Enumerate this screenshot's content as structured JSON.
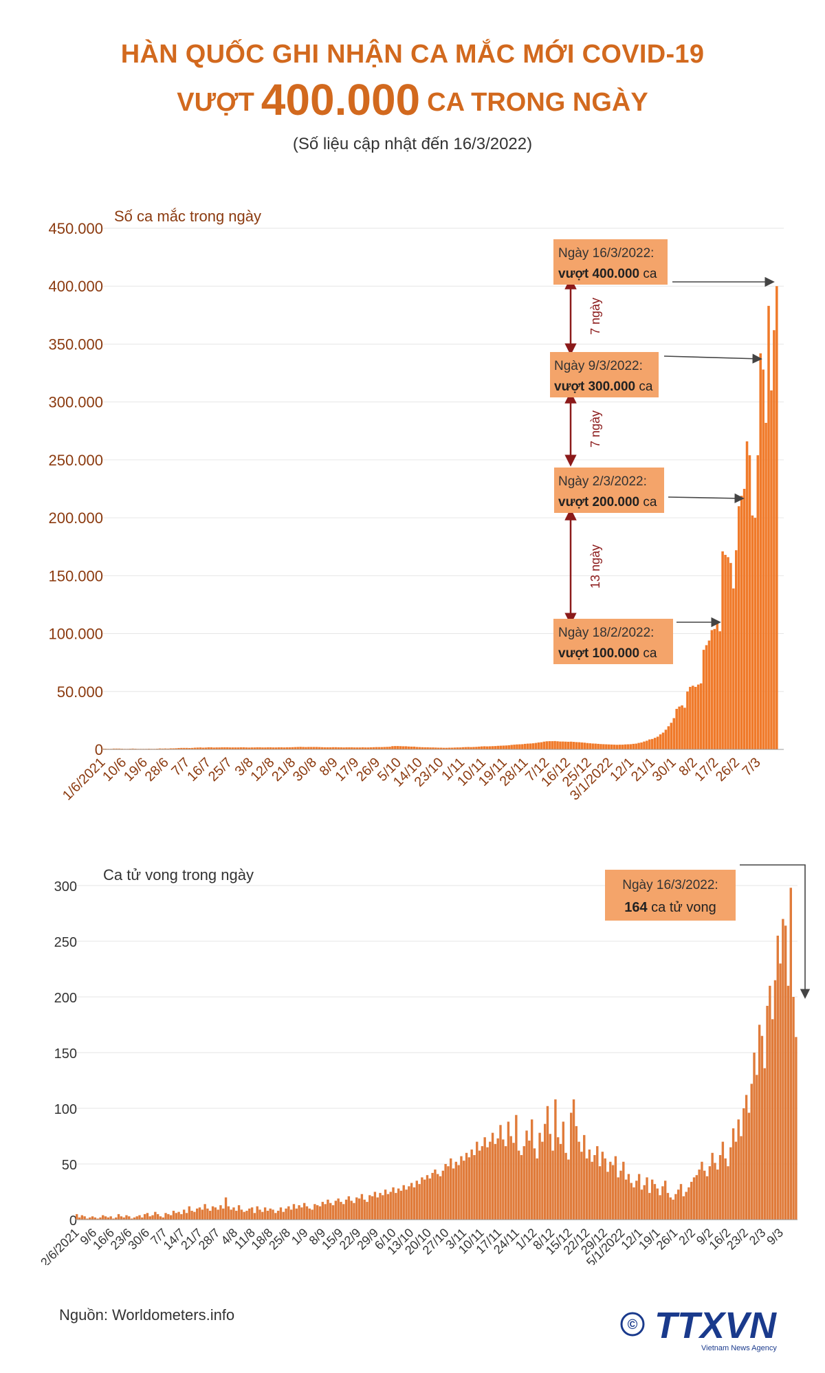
{
  "title": {
    "line1": "HÀN QUỐC GHI NHẬN CA MẮC MỚI COVID-19",
    "line2_prefix": "VƯỢT",
    "line2_number": "400.000",
    "line2_suffix": "CA TRONG NGÀY",
    "subtitle": "(Số liệu cập nhật đến 16/3/2022)"
  },
  "colors": {
    "accent": "#d2691e",
    "bar": "#f07a2a",
    "death_bar": "#e07b3a",
    "box": "#f4a46a",
    "arrow_red": "#8b1a1a",
    "grid": "#e6e6e6"
  },
  "chart_data": [
    {
      "type": "bar",
      "ylabel": "Số ca mắc trong ngày",
      "ylim": [
        0,
        450000
      ],
      "yticks": [
        "0",
        "50.000",
        "100.000",
        "150.000",
        "200.000",
        "250.000",
        "300.000",
        "350.000",
        "400.000",
        "450.000"
      ],
      "xticks": [
        "1/6/2021",
        "10/6",
        "19/6",
        "28/6",
        "7/7",
        "16/7",
        "25/7",
        "3/8",
        "12/8",
        "21/8",
        "30/8",
        "8/9",
        "17/9",
        "26/9",
        "5/10",
        "14/10",
        "23/10",
        "1/11",
        "10/11",
        "19/11",
        "28/11",
        "7/12",
        "16/12",
        "25/12",
        "3/1/2022",
        "12/1",
        "21/1",
        "30/1",
        "8/2",
        "17/2",
        "26/2",
        "7/3"
      ],
      "period": "1/6/2021 - 16/3/2022",
      "values": [
        700,
        600,
        500,
        500,
        700,
        700,
        700,
        600,
        500,
        500,
        600,
        700,
        600,
        500,
        500,
        500,
        500,
        600,
        500,
        500,
        600,
        800,
        700,
        800,
        700,
        900,
        900,
        1000,
        1200,
        1300,
        1300,
        1300,
        1200,
        1300,
        1500,
        1600,
        1700,
        1500,
        1600,
        1800,
        1800,
        1600,
        1700,
        1700,
        1800,
        1800,
        1800,
        1700,
        1700,
        1700,
        1700,
        1800,
        1800,
        1700,
        1600,
        1700,
        1700,
        1800,
        1800,
        1700,
        1700,
        1800,
        1800,
        1700,
        1700,
        1800,
        1800,
        1700,
        1800,
        1800,
        1900,
        2000,
        2100,
        2200,
        2100,
        2000,
        2100,
        2100,
        2100,
        2100,
        2000,
        1900,
        1800,
        1800,
        1800,
        1900,
        1900,
        1800,
        1800,
        1700,
        1800,
        1800,
        1800,
        1700,
        1700,
        1700,
        1800,
        1700,
        1700,
        1800,
        1900,
        2000,
        2000,
        2000,
        2100,
        2200,
        2300,
        2800,
        2900,
        2900,
        2800,
        2700,
        2700,
        2500,
        2400,
        2400,
        2100,
        2000,
        1900,
        1800,
        1800,
        1700,
        1700,
        1600,
        1500,
        1500,
        1400,
        1400,
        1500,
        1500,
        1600,
        1700,
        1700,
        1900,
        2000,
        2100,
        2000,
        2100,
        2200,
        2400,
        2600,
        2700,
        2600,
        2700,
        2800,
        2900,
        3100,
        3200,
        3300,
        3400,
        3600,
        3900,
        4100,
        4300,
        4400,
        4500,
        4800,
        5000,
        5100,
        5300,
        5600,
        6000,
        6200,
        6700,
        7000,
        7100,
        7100,
        7200,
        7000,
        6800,
        6800,
        6700,
        6600,
        6700,
        6500,
        6300,
        6200,
        6000,
        5800,
        5500,
        5300,
        5100,
        5000,
        4800,
        4600,
        4500,
        4400,
        4300,
        4200,
        4100,
        4000,
        4100,
        4100,
        4300,
        4400,
        4500,
        4800,
        5000,
        5600,
        6000,
        6800,
        7500,
        8600,
        9000,
        10000,
        11000,
        13000,
        14500,
        17000,
        20000,
        23000,
        27000,
        35000,
        37000,
        38000,
        36000,
        50000,
        54000,
        55000,
        54000,
        56000,
        57000,
        86000,
        90000,
        94000,
        103000,
        104000,
        109000,
        102000,
        171000,
        168000,
        166000,
        161000,
        139000,
        172000,
        210000,
        219000,
        225000,
        266000,
        254000,
        202000,
        200000,
        254000,
        342000,
        328000,
        282000,
        383000,
        310000,
        362000,
        400000
      ]
    },
    {
      "type": "bar",
      "ylabel": "Ca tử vong trong ngày",
      "ylim": [
        0,
        300
      ],
      "yticks": [
        "0",
        "50",
        "100",
        "150",
        "200",
        "250",
        "300"
      ],
      "xticks": [
        "2/6/2021",
        "9/6",
        "16/6",
        "23/6",
        "30/6",
        "7/7",
        "14/7",
        "21/7",
        "28/7",
        "4/8",
        "11/8",
        "18/8",
        "25/8",
        "1/9",
        "8/9",
        "15/9",
        "22/9",
        "29/9",
        "6/10",
        "13/10",
        "20/10",
        "27/10",
        "3/11",
        "10/11",
        "17/11",
        "24/11",
        "1/12",
        "8/12",
        "15/12",
        "22/12",
        "29/12",
        "5/1/2022",
        "12/1",
        "19/1",
        "26/1",
        "2/2",
        "9/2",
        "16/2",
        "23/2",
        "2/3",
        "9/3"
      ],
      "period": "2/6/2021 - 16/3/2022",
      "values": [
        5,
        2,
        4,
        3,
        1,
        2,
        3,
        2,
        1,
        2,
        4,
        3,
        2,
        3,
        1,
        2,
        5,
        3,
        2,
        4,
        3,
        1,
        2,
        3,
        4,
        2,
        5,
        6,
        3,
        4,
        7,
        5,
        3,
        2,
        6,
        5,
        4,
        8,
        6,
        7,
        5,
        9,
        6,
        12,
        8,
        7,
        10,
        11,
        9,
        14,
        10,
        8,
        12,
        11,
        9,
        13,
        10,
        20,
        12,
        9,
        11,
        8,
        13,
        9,
        7,
        8,
        10,
        11,
        6,
        12,
        9,
        7,
        11,
        8,
        10,
        9,
        6,
        8,
        11,
        7,
        10,
        12,
        9,
        14,
        10,
        13,
        11,
        15,
        12,
        10,
        9,
        14,
        13,
        12,
        16,
        14,
        18,
        15,
        13,
        17,
        19,
        16,
        14,
        18,
        21,
        17,
        15,
        20,
        19,
        23,
        18,
        16,
        22,
        21,
        25,
        20,
        24,
        22,
        27,
        23,
        25,
        29,
        24,
        28,
        26,
        31,
        27,
        30,
        33,
        29,
        35,
        32,
        38,
        36,
        40,
        37,
        42,
        45,
        41,
        39,
        44,
        50,
        48,
        55,
        46,
        52,
        49,
        57,
        53,
        60,
        56,
        63,
        58,
        70,
        62,
        66,
        74,
        65,
        70,
        78,
        68,
        73,
        85,
        72,
        66,
        88,
        75,
        69,
        94,
        62,
        58,
        66,
        80,
        71,
        90,
        64,
        55,
        78,
        70,
        86,
        102,
        77,
        62,
        108,
        74,
        68,
        88,
        60,
        54,
        96,
        108,
        84,
        70,
        61,
        76,
        55,
        63,
        52,
        58,
        66,
        48,
        61,
        55,
        43,
        52,
        49,
        57,
        38,
        44,
        52,
        36,
        41,
        33,
        29,
        35,
        41,
        27,
        31,
        38,
        24,
        36,
        32,
        28,
        22,
        30,
        35,
        24,
        20,
        18,
        23,
        27,
        32,
        21,
        25,
        29,
        34,
        38,
        40,
        45,
        52,
        44,
        39,
        48,
        60,
        51,
        45,
        58,
        70,
        55,
        48,
        65,
        82,
        70,
        90,
        75,
        100,
        112,
        96,
        122,
        150,
        130,
        175,
        165,
        136,
        192,
        210,
        180,
        215,
        255,
        230,
        270,
        264,
        210,
        298,
        200,
        164
      ]
    }
  ],
  "annotations": {
    "a400": {
      "line1": "Ngày 16/3/2022:",
      "strong": "vượt 400.000",
      "tail": " ca"
    },
    "a300": {
      "line1": "Ngày 9/3/2022:",
      "strong": "vượt 300.000",
      "tail": " ca"
    },
    "a200": {
      "line1": "Ngày 2/3/2022:",
      "strong": "vượt 200.000",
      "tail": " ca"
    },
    "a100": {
      "line1": "Ngày 18/2/2022:",
      "strong": "vượt 100.000",
      "tail": " ca"
    },
    "gap1": "7 ngày",
    "gap2": "7 ngày",
    "gap3": "13 ngày",
    "death": {
      "line1": "Ngày 16/3/2022:",
      "strong": "164",
      "tail": " ca tử vong"
    }
  },
  "footer": {
    "source": "Nguồn: Worldometers.info",
    "logo_text": "TTXVN",
    "logo_sub": "Vietnam News Agency",
    "copyright": "©"
  }
}
